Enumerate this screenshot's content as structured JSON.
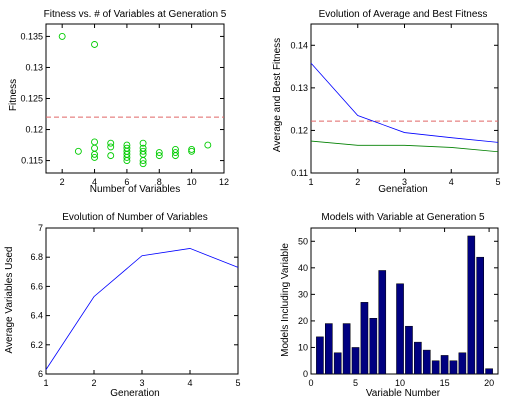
{
  "chart_data": [
    {
      "type": "scatter",
      "title": "Fitness vs. # of Variables at Generation 5",
      "xlabel": "Number of Variables",
      "ylabel": "Fitness",
      "xlim": [
        1,
        12
      ],
      "ylim": [
        0.113,
        0.137
      ],
      "xticks": [
        "2",
        "4",
        "6",
        "8",
        "10",
        "12"
      ],
      "yticks": [
        "0.115",
        "0.12",
        "0.125",
        "0.13",
        "0.135"
      ],
      "reference_line": 0.122,
      "reference_color": "#e06666",
      "point_color": "#00cc00",
      "points": [
        [
          2,
          0.135
        ],
        [
          3,
          0.1165
        ],
        [
          4,
          0.1337
        ],
        [
          4,
          0.118
        ],
        [
          4,
          0.117
        ],
        [
          4,
          0.116
        ],
        [
          4,
          0.1155
        ],
        [
          5,
          0.1178
        ],
        [
          5,
          0.1172
        ],
        [
          5,
          0.1158
        ],
        [
          6,
          0.1175
        ],
        [
          6,
          0.117
        ],
        [
          6,
          0.1165
        ],
        [
          6,
          0.116
        ],
        [
          6,
          0.1155
        ],
        [
          6,
          0.115
        ],
        [
          7,
          0.1178
        ],
        [
          7,
          0.117
        ],
        [
          7,
          0.1165
        ],
        [
          7,
          0.116
        ],
        [
          7,
          0.115
        ],
        [
          7,
          0.1145
        ],
        [
          8,
          0.1163
        ],
        [
          8,
          0.1158
        ],
        [
          9,
          0.1168
        ],
        [
          9,
          0.1163
        ],
        [
          9,
          0.1158
        ],
        [
          10,
          0.1168
        ],
        [
          10,
          0.1165
        ],
        [
          11,
          0.1175
        ]
      ],
      "grid": false
    },
    {
      "type": "line",
      "title": "Evolution of Average and Best Fitness",
      "xlabel": "Generation",
      "ylabel": "Average and Best Fitness",
      "xlim": [
        1,
        5
      ],
      "ylim": [
        0.11,
        0.145
      ],
      "xticks": [
        "1",
        "2",
        "3",
        "4",
        "5"
      ],
      "yticks": [
        "0.11",
        "0.12",
        "0.13",
        "0.14"
      ],
      "x": [
        1,
        2,
        3,
        4,
        5
      ],
      "series": [
        {
          "values": [
            0.1358,
            0.1235,
            0.1195,
            0.1183,
            0.1172
          ],
          "color": "#0000ff"
        },
        {
          "values": [
            0.1175,
            0.1165,
            0.1165,
            0.116,
            0.115
          ],
          "color": "#008000"
        }
      ],
      "reference_line": 0.1222,
      "reference_color": "#e06666",
      "grid": false
    },
    {
      "type": "line",
      "title": "Evolution of Number of Variables",
      "xlabel": "Generation",
      "ylabel": "Average Variables Used",
      "xlim": [
        1,
        5
      ],
      "ylim": [
        6,
        7
      ],
      "xticks": [
        "1",
        "2",
        "3",
        "4",
        "5"
      ],
      "yticks": [
        "6",
        "6.2",
        "6.4",
        "6.6",
        "6.8",
        "7"
      ],
      "x": [
        1,
        2,
        3,
        4,
        5
      ],
      "series": [
        {
          "values": [
            6.03,
            6.53,
            6.81,
            6.86,
            6.73
          ],
          "color": "#0000ff"
        }
      ],
      "grid": false
    },
    {
      "type": "bar",
      "title": "Models with Variable at Generation 5",
      "xlabel": "Variable Number",
      "ylabel": "Models Including Variable",
      "xlim": [
        0,
        21
      ],
      "ylim": [
        0,
        55
      ],
      "xticks": [
        "0",
        "5",
        "10",
        "15",
        "20"
      ],
      "yticks": [
        "0",
        "10",
        "20",
        "30",
        "40",
        "50"
      ],
      "categories": [
        1,
        2,
        3,
        4,
        5,
        6,
        7,
        8,
        9,
        10,
        11,
        12,
        13,
        14,
        15,
        16,
        17,
        18,
        19,
        20
      ],
      "values": [
        14,
        19,
        8,
        19,
        10,
        27,
        21,
        39,
        0,
        34,
        18,
        12,
        9,
        5,
        7,
        5,
        8,
        52,
        44,
        2
      ],
      "bar_color": "#000080",
      "grid": false
    }
  ]
}
